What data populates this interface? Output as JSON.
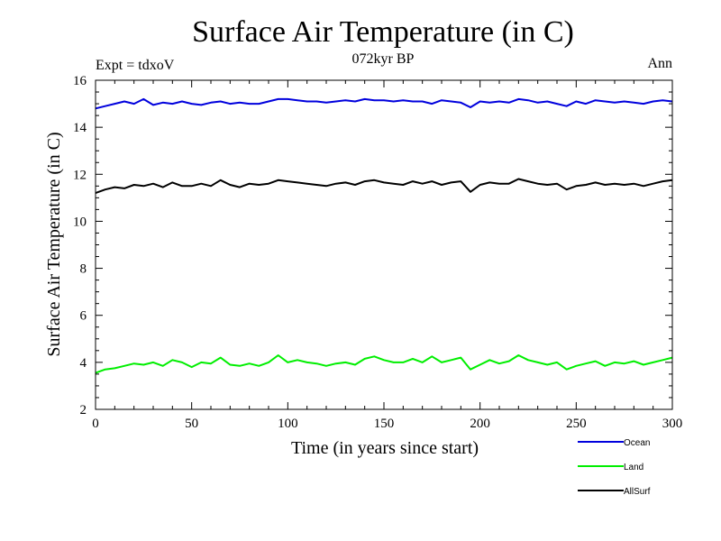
{
  "chart_data": {
    "type": "line",
    "title": "Surface Air Temperature (in C)",
    "subtitle": "072kyr BP",
    "top_left_label": "Expt = tdxoV",
    "top_right_label": "Ann",
    "xlabel": "Time (in years since start)",
    "ylabel": "Surface Air Temperature (in C)",
    "xlim": [
      0,
      300
    ],
    "ylim": [
      2,
      16
    ],
    "x_ticks": [
      0,
      50,
      100,
      150,
      200,
      250,
      300
    ],
    "y_ticks": [
      2,
      4,
      6,
      8,
      10,
      12,
      14,
      16
    ],
    "grid": false,
    "legend_position": "bottom-right, below plot",
    "series": [
      {
        "name": "Ocean",
        "color": "#0000dd",
        "x": [
          0,
          5,
          10,
          15,
          20,
          25,
          30,
          35,
          40,
          45,
          50,
          55,
          60,
          65,
          70,
          75,
          80,
          85,
          90,
          95,
          100,
          105,
          110,
          115,
          120,
          125,
          130,
          135,
          140,
          145,
          150,
          155,
          160,
          165,
          170,
          175,
          180,
          185,
          190,
          195,
          200,
          205,
          210,
          215,
          220,
          225,
          230,
          235,
          240,
          245,
          250,
          255,
          260,
          265,
          270,
          275,
          280,
          285,
          290,
          295,
          300
        ],
        "y": [
          14.8,
          14.9,
          15.0,
          15.1,
          15.0,
          15.2,
          14.95,
          15.05,
          15.0,
          15.1,
          15.0,
          14.95,
          15.05,
          15.1,
          15.0,
          15.05,
          15.0,
          15.0,
          15.1,
          15.2,
          15.2,
          15.15,
          15.1,
          15.1,
          15.05,
          15.1,
          15.15,
          15.1,
          15.2,
          15.15,
          15.15,
          15.1,
          15.15,
          15.1,
          15.1,
          15.0,
          15.15,
          15.1,
          15.05,
          14.85,
          15.1,
          15.05,
          15.1,
          15.05,
          15.2,
          15.15,
          15.05,
          15.1,
          15.0,
          14.9,
          15.1,
          15.0,
          15.15,
          15.1,
          15.05,
          15.1,
          15.05,
          15.0,
          15.1,
          15.15,
          15.1
        ]
      },
      {
        "name": "Land",
        "color": "#00ee00",
        "x": [
          0,
          5,
          10,
          15,
          20,
          25,
          30,
          35,
          40,
          45,
          50,
          55,
          60,
          65,
          70,
          75,
          80,
          85,
          90,
          95,
          100,
          105,
          110,
          115,
          120,
          125,
          130,
          135,
          140,
          145,
          150,
          155,
          160,
          165,
          170,
          175,
          180,
          185,
          190,
          195,
          200,
          205,
          210,
          215,
          220,
          225,
          230,
          235,
          240,
          245,
          250,
          255,
          260,
          265,
          270,
          275,
          280,
          285,
          290,
          295,
          300
        ],
        "y": [
          3.55,
          3.7,
          3.75,
          3.85,
          3.95,
          3.9,
          4.0,
          3.85,
          4.1,
          4.0,
          3.8,
          4.0,
          3.95,
          4.2,
          3.9,
          3.85,
          3.95,
          3.85,
          4.0,
          4.3,
          4.0,
          4.1,
          4.0,
          3.95,
          3.85,
          3.95,
          4.0,
          3.9,
          4.15,
          4.25,
          4.1,
          4.0,
          4.0,
          4.15,
          4.0,
          4.25,
          4.0,
          4.1,
          4.2,
          3.7,
          3.9,
          4.1,
          3.95,
          4.05,
          4.3,
          4.1,
          4.0,
          3.9,
          4.0,
          3.7,
          3.85,
          3.95,
          4.05,
          3.85,
          4.0,
          3.95,
          4.05,
          3.9,
          4.0,
          4.1,
          4.2
        ]
      },
      {
        "name": "AllSurf",
        "color": "#000000",
        "x": [
          0,
          5,
          10,
          15,
          20,
          25,
          30,
          35,
          40,
          45,
          50,
          55,
          60,
          65,
          70,
          75,
          80,
          85,
          90,
          95,
          100,
          105,
          110,
          115,
          120,
          125,
          130,
          135,
          140,
          145,
          150,
          155,
          160,
          165,
          170,
          175,
          180,
          185,
          190,
          195,
          200,
          205,
          210,
          215,
          220,
          225,
          230,
          235,
          240,
          245,
          250,
          255,
          260,
          265,
          270,
          275,
          280,
          285,
          290,
          295,
          300
        ],
        "y": [
          11.2,
          11.35,
          11.45,
          11.4,
          11.55,
          11.5,
          11.6,
          11.45,
          11.65,
          11.5,
          11.5,
          11.6,
          11.5,
          11.75,
          11.55,
          11.45,
          11.6,
          11.55,
          11.6,
          11.75,
          11.7,
          11.65,
          11.6,
          11.55,
          11.5,
          11.6,
          11.65,
          11.55,
          11.7,
          11.75,
          11.65,
          11.6,
          11.55,
          11.7,
          11.6,
          11.7,
          11.55,
          11.65,
          11.7,
          11.25,
          11.55,
          11.65,
          11.6,
          11.6,
          11.8,
          11.7,
          11.6,
          11.55,
          11.6,
          11.35,
          11.5,
          11.55,
          11.65,
          11.55,
          11.6,
          11.55,
          11.6,
          11.5,
          11.6,
          11.7,
          11.75
        ]
      }
    ]
  }
}
